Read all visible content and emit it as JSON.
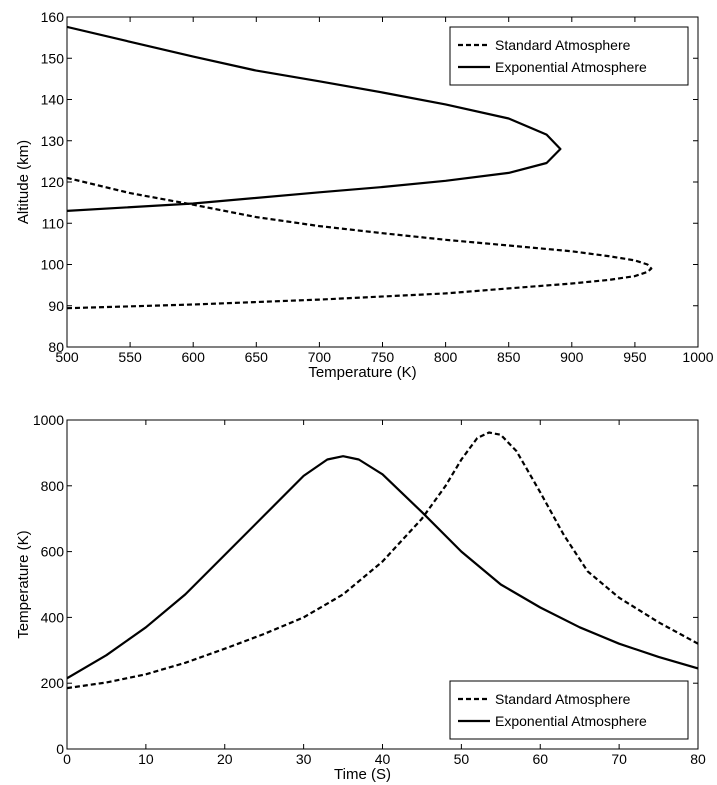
{
  "chart_data": [
    {
      "type": "line",
      "title": "",
      "xlabel": "Temperature (K)",
      "ylabel": "Altitude (km)",
      "xlim": [
        500,
        1000
      ],
      "ylim": [
        80,
        160
      ],
      "xticks": [
        500,
        550,
        600,
        650,
        700,
        750,
        800,
        850,
        900,
        950,
        1000
      ],
      "yticks": [
        80,
        90,
        100,
        110,
        120,
        130,
        140,
        150,
        160
      ],
      "grid": false,
      "legend_position": "top-right",
      "series": [
        {
          "name": "Standard Atmosphere",
          "style": "dashed",
          "x": [
            500,
            600,
            700,
            800,
            850,
            900,
            930,
            950,
            960,
            963,
            960,
            950,
            930,
            900,
            850,
            800,
            750,
            700,
            650,
            600,
            550,
            500
          ],
          "y": [
            89.4,
            90.3,
            91.5,
            93.0,
            94.2,
            95.4,
            96.3,
            97.2,
            98.2,
            99.0,
            100.0,
            101.0,
            102.0,
            103.2,
            104.6,
            106.0,
            107.6,
            109.3,
            111.5,
            114.5,
            117.3,
            121.0
          ]
        },
        {
          "name": "Exponential Atmosphere",
          "style": "solid",
          "x": [
            500,
            600,
            700,
            750,
            800,
            850,
            880,
            891,
            880,
            850,
            800,
            750,
            700,
            650,
            600,
            550,
            500
          ],
          "y": [
            113.0,
            114.8,
            117.5,
            118.8,
            120.3,
            122.2,
            124.6,
            128.0,
            131.5,
            135.4,
            138.8,
            141.7,
            144.4,
            147.0,
            150.4,
            154.0,
            157.6
          ]
        }
      ]
    },
    {
      "type": "line",
      "title": "",
      "xlabel": "Time (S)",
      "ylabel": "Temperature (K)",
      "xlim": [
        0,
        80
      ],
      "ylim": [
        0,
        1000
      ],
      "xticks": [
        0,
        10,
        20,
        30,
        40,
        50,
        60,
        70,
        80
      ],
      "yticks": [
        0,
        200,
        400,
        600,
        800,
        1000
      ],
      "grid": false,
      "legend_position": "bottom-right",
      "series": [
        {
          "name": "Standard Atmosphere",
          "style": "dashed",
          "x": [
            0,
            5,
            10,
            15,
            20,
            25,
            30,
            35,
            40,
            45,
            48,
            50,
            52,
            53.5,
            55,
            57,
            60,
            63,
            66,
            70,
            75,
            80
          ],
          "y": [
            185,
            202,
            227,
            262,
            305,
            350,
            400,
            470,
            570,
            700,
            800,
            880,
            945,
            962,
            955,
            905,
            780,
            650,
            540,
            460,
            385,
            320
          ]
        },
        {
          "name": "Exponential Atmosphere",
          "style": "solid",
          "x": [
            0,
            5,
            10,
            15,
            20,
            25,
            30,
            33,
            35,
            37,
            40,
            45,
            50,
            55,
            60,
            65,
            70,
            75,
            80
          ],
          "y": [
            215,
            285,
            370,
            470,
            590,
            710,
            830,
            880,
            890,
            880,
            835,
            720,
            600,
            500,
            430,
            370,
            320,
            280,
            245
          ]
        }
      ]
    }
  ]
}
